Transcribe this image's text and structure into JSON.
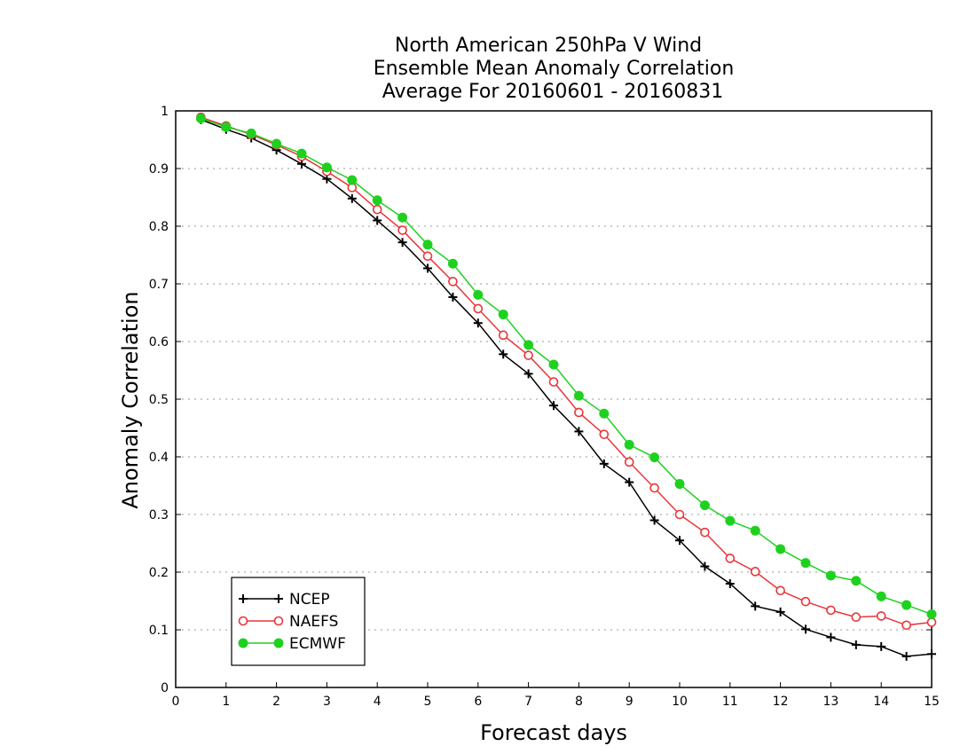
{
  "chart_data": {
    "type": "line",
    "title": [
      "North American 250hPa V Wind",
      "Ensemble Mean Anomaly Correlation",
      "Average For 20160601 - 20160831"
    ],
    "xlabel": "Forecast days",
    "ylabel": "Anomaly Correlation",
    "xlim": [
      0,
      15
    ],
    "ylim": [
      0,
      1
    ],
    "xticks": [
      0,
      1,
      2,
      3,
      4,
      5,
      6,
      7,
      8,
      9,
      10,
      11,
      12,
      13,
      14,
      15
    ],
    "yticks": [
      0,
      0.1,
      0.2,
      0.3,
      0.4,
      0.5,
      0.6,
      0.7,
      0.8,
      0.9,
      1
    ],
    "ytick_labels": [
      "0",
      "0.1",
      "0.2",
      "0.3",
      "0.4",
      "0.5",
      "0.6",
      "0.7",
      "0.8",
      "0.9",
      "1"
    ],
    "grid": "horizontal dotted",
    "legend_position": "bottom-left",
    "x": [
      0.5,
      1,
      1.5,
      2,
      2.5,
      3,
      3.5,
      4,
      4.5,
      5,
      5.5,
      6,
      6.5,
      7,
      7.5,
      8,
      8.5,
      9,
      9.5,
      10,
      10.5,
      11,
      11.5,
      12,
      12.5,
      13,
      13.5,
      14,
      14.5,
      15
    ],
    "series": [
      {
        "name": "NCEP",
        "color": "#000000",
        "marker": "plus",
        "values": [
          0.985,
          0.968,
          0.953,
          0.932,
          0.908,
          0.882,
          0.848,
          0.81,
          0.772,
          0.727,
          0.677,
          0.632,
          0.578,
          0.544,
          0.489,
          0.444,
          0.388,
          0.356,
          0.29,
          0.255,
          0.21,
          0.18,
          0.141,
          0.131,
          0.101,
          0.087,
          0.074,
          0.071,
          0.054,
          0.058
        ]
      },
      {
        "name": "NAEFS",
        "color": "#e8363a",
        "marker": "open-circle",
        "values": [
          0.989,
          0.974,
          0.959,
          0.941,
          0.921,
          0.895,
          0.867,
          0.829,
          0.793,
          0.748,
          0.704,
          0.657,
          0.611,
          0.576,
          0.53,
          0.477,
          0.439,
          0.391,
          0.346,
          0.3,
          0.269,
          0.224,
          0.201,
          0.168,
          0.149,
          0.134,
          0.122,
          0.124,
          0.108,
          0.113
        ]
      },
      {
        "name": "ECMWF",
        "color": "#1fd11f",
        "marker": "filled-circle",
        "values": [
          0.987,
          0.972,
          0.961,
          0.943,
          0.926,
          0.902,
          0.88,
          0.845,
          0.815,
          0.768,
          0.735,
          0.681,
          0.647,
          0.594,
          0.56,
          0.506,
          0.475,
          0.421,
          0.399,
          0.353,
          0.316,
          0.289,
          0.272,
          0.24,
          0.216,
          0.194,
          0.185,
          0.158,
          0.143,
          0.127
        ]
      }
    ]
  }
}
